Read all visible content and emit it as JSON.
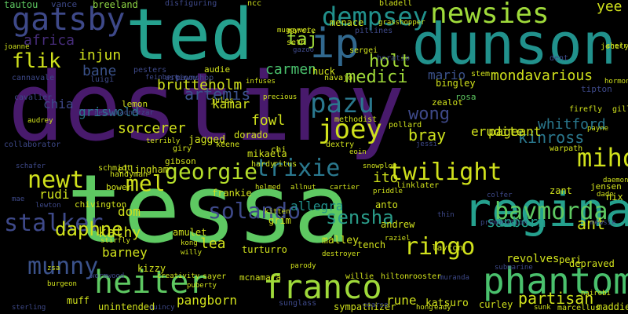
{
  "background": "#000000",
  "palette": {
    "dark_purple": "#3f1d5e",
    "indigo": "#3b528b",
    "blue": "#31688e",
    "teal": "#21918c",
    "sea": "#2a9c89",
    "green": "#5ec962",
    "lime": "#addc30",
    "yellow": "#fde725"
  },
  "words": [
    {
      "text": "destiny",
      "color": "#481a6c"
    },
    {
      "text": "tessa",
      "color": "#5ec962"
    },
    {
      "text": "dunson",
      "color": "#21918c"
    },
    {
      "text": "ted",
      "color": "#25a18e"
    },
    {
      "text": "regina",
      "color": "#25a18e"
    },
    {
      "text": "phantom",
      "color": "#4ac16d"
    },
    {
      "text": "newsies",
      "color": "#9fda3a"
    },
    {
      "text": "franco",
      "color": "#9fda3a"
    },
    {
      "text": "heiter",
      "color": "#5ec962"
    },
    {
      "text": "ip",
      "color": "#31688e"
    },
    {
      "text": "gatsby",
      "color": "#3e4989"
    },
    {
      "text": "pazu",
      "color": "#2a788e"
    },
    {
      "text": "dempsey",
      "color": "#21918c"
    },
    {
      "text": "joey",
      "color": "#d0e11c"
    },
    {
      "text": "munny",
      "color": "#3b528b"
    },
    {
      "text": "stalker",
      "color": "#3e4989"
    },
    {
      "text": "twilight",
      "color": "#d0e11c"
    },
    {
      "text": "solando",
      "color": "#3e4989"
    },
    {
      "text": "newt",
      "color": "#d0e11c"
    },
    {
      "text": "georgie",
      "color": "#b5de2b"
    },
    {
      "text": "trixie",
      "color": "#2a788e"
    },
    {
      "text": "bavmorda",
      "color": "#5ec962"
    },
    {
      "text": "ringo",
      "color": "#d0e11c"
    },
    {
      "text": "miho",
      "color": "#d0e11c"
    },
    {
      "text": "mel",
      "color": "#d0e11c"
    },
    {
      "text": "flik",
      "color": "#d0e11c"
    },
    {
      "text": "sensha",
      "color": "#2a9c89"
    },
    {
      "text": "daphne",
      "color": "#d0e11c"
    },
    {
      "text": "africa",
      "color": "#472d7b"
    },
    {
      "text": "tautou",
      "color": "#5ec962"
    },
    {
      "text": "vance",
      "color": "#3e4989"
    },
    {
      "text": "breeland",
      "color": "#8fd744"
    },
    {
      "text": "artemis",
      "color": "#3b528b"
    },
    {
      "text": "taj",
      "color": "#9fda3a"
    },
    {
      "text": "holt",
      "color": "#a2da37"
    },
    {
      "text": "injun",
      "color": "#d0e11c"
    },
    {
      "text": "bane",
      "color": "#3b528b"
    },
    {
      "text": "brutteholm",
      "color": "#d0e11c"
    },
    {
      "text": "carmen",
      "color": "#4ac16d"
    },
    {
      "text": "medici",
      "color": "#9fda3a"
    },
    {
      "text": "mondavarious",
      "color": "#d0e11c"
    },
    {
      "text": "wong",
      "color": "#3e4989"
    },
    {
      "text": "bray",
      "color": "#cde11d"
    },
    {
      "text": "kinross",
      "color": "#2a788e"
    },
    {
      "text": "whitford",
      "color": "#2a788e"
    },
    {
      "text": "erudite",
      "color": "#d0e11c"
    },
    {
      "text": "pageant",
      "color": "#d0e11c"
    },
    {
      "text": "sanborn",
      "color": "#25a18e"
    },
    {
      "text": "ant",
      "color": "#d0e11c"
    },
    {
      "text": "partisan",
      "color": "#d0e11c"
    },
    {
      "text": "mario",
      "color": "#3b528b"
    },
    {
      "text": "rosa",
      "color": "#5ec962"
    },
    {
      "text": "zealot",
      "color": "#d0e11c"
    },
    {
      "text": "methodist",
      "color": "#d0e11c"
    },
    {
      "text": "kamar",
      "color": "#d0e11c"
    },
    {
      "text": "fowl",
      "color": "#d0e11c"
    },
    {
      "text": "chia",
      "color": "#3e4989"
    },
    {
      "text": "griswold",
      "color": "#2a788e"
    },
    {
      "text": "sorcerer",
      "color": "#d0e11c"
    },
    {
      "text": "jagged",
      "color": "#d0e11c"
    },
    {
      "text": "dorado",
      "color": "#d0e11c"
    },
    {
      "text": "mikaela",
      "color": "#d0e11c"
    },
    {
      "text": "rudi",
      "color": "#d0e11c"
    },
    {
      "text": "ito",
      "color": "#d0e11c"
    },
    {
      "text": "dom",
      "color": "#d0e11c"
    },
    {
      "text": "kathy",
      "color": "#d0e11c"
    },
    {
      "text": "lea",
      "color": "#d0e11c"
    },
    {
      "text": "barney",
      "color": "#d0e11c"
    },
    {
      "text": "allegra",
      "color": "#21918c"
    },
    {
      "text": "anto",
      "color": "#d0e11c"
    },
    {
      "text": "andrew",
      "color": "#d0e11c"
    },
    {
      "text": "malley",
      "color": "#d0e11c"
    },
    {
      "text": "turturro",
      "color": "#d0e11c"
    },
    {
      "text": "kizzy",
      "color": "#d0e11c"
    },
    {
      "text": "mcnamara",
      "color": "#d0e11c"
    },
    {
      "text": "muff",
      "color": "#d0e11c"
    },
    {
      "text": "unintended",
      "color": "#d0e11c"
    },
    {
      "text": "pangborn",
      "color": "#d0e11c"
    },
    {
      "text": "rune",
      "color": "#d0e11c"
    },
    {
      "text": "katsuro",
      "color": "#d0e11c"
    },
    {
      "text": "curley",
      "color": "#d0e11c"
    },
    {
      "text": "revolves",
      "color": "#d0e11c"
    },
    {
      "text": "depraved",
      "color": "#d0e11c"
    },
    {
      "text": "peri",
      "color": "#d0e11c"
    },
    {
      "text": "yee",
      "color": "#d0e11c"
    },
    {
      "text": "lemon",
      "color": "#d0e11c"
    },
    {
      "text": "sunglass",
      "color": "#3e4989"
    },
    {
      "text": "sympathizer",
      "color": "#d0e11c"
    },
    {
      "text": "maddie",
      "color": "#d0e11c"
    },
    {
      "text": "ellingham",
      "color": "#d0e11c"
    },
    {
      "text": "schmidt",
      "color": "#d0e11c"
    },
    {
      "text": "gibson",
      "color": "#d0e11c"
    },
    {
      "text": "frankie",
      "color": "#d0e11c"
    },
    {
      "text": "bower",
      "color": "#d0e11c"
    },
    {
      "text": "amulet",
      "color": "#d0e11c"
    },
    {
      "text": "grim",
      "color": "#d0e11c"
    },
    {
      "text": "tench",
      "color": "#d0e11c"
    },
    {
      "text": "layton",
      "color": "#d0e11c"
    },
    {
      "text": "jensen",
      "color": "#d0e11c"
    },
    {
      "text": "zant",
      "color": "#d0e11c"
    },
    {
      "text": "nix",
      "color": "#d0e11c"
    },
    {
      "text": "stem",
      "color": "#d0e11c"
    },
    {
      "text": "huck",
      "color": "#d0e11c"
    },
    {
      "text": "audie",
      "color": "#d0e11c"
    },
    {
      "text": "navajo",
      "color": "#d0e11c"
    },
    {
      "text": "bingley",
      "color": "#d0e11c"
    },
    {
      "text": "dextry",
      "color": "#d0e11c"
    },
    {
      "text": "sergei",
      "color": "#d0e11c"
    },
    {
      "text": "seth",
      "color": "#d0e11c"
    },
    {
      "text": "menace",
      "color": "#d0e11c"
    },
    {
      "text": "luigi",
      "color": "#3e4989"
    },
    {
      "text": "cannavale",
      "color": "#3e4989"
    },
    {
      "text": "pesters",
      "color": "#3e4989"
    },
    {
      "text": "ustinov",
      "color": "#3e4989"
    },
    {
      "text": "pawnshop",
      "color": "#3e4989"
    },
    {
      "text": "feinberg",
      "color": "#3e4989"
    },
    {
      "text": "jules",
      "color": "#d0e11c"
    },
    {
      "text": "infuses",
      "color": "#d0e11c"
    },
    {
      "text": "tipton",
      "color": "#3e4989"
    },
    {
      "text": "firefly",
      "color": "#d0e11c"
    },
    {
      "text": "gilliam",
      "color": "#d0e11c"
    },
    {
      "text": "dent",
      "color": "#3e4989"
    },
    {
      "text": "jocelyn",
      "color": "#d0e11c"
    },
    {
      "text": "joanne",
      "color": "#d0e11c"
    },
    {
      "text": "ncc",
      "color": "#d0e11c"
    },
    {
      "text": "disfiguring",
      "color": "#3e4989"
    },
    {
      "text": "pitlines",
      "color": "#3e4989"
    },
    {
      "text": "grasshopper",
      "color": "#d0e11c"
    },
    {
      "text": "bladell",
      "color": "#d0e11c"
    },
    {
      "text": "horatio",
      "color": "#3e4989"
    },
    {
      "text": "gazoo",
      "color": "#3e4989"
    },
    {
      "text": "marcie",
      "color": "#d0e11c"
    },
    {
      "text": "muggyver",
      "color": "#d0e11c"
    },
    {
      "text": "precious",
      "color": "#d0e11c"
    },
    {
      "text": "keene",
      "color": "#d0e11c"
    },
    {
      "text": "giry",
      "color": "#d0e11c"
    },
    {
      "text": "ritus",
      "color": "#d0e11c"
    },
    {
      "text": "chi",
      "color": "#d0e11c"
    },
    {
      "text": "hardy",
      "color": "#d0e11c"
    },
    {
      "text": "pollard",
      "color": "#d0e11c"
    },
    {
      "text": "eoin",
      "color": "#d0e11c"
    },
    {
      "text": "snowplow",
      "color": "#d0e11c"
    },
    {
      "text": "jessi",
      "color": "#3e4989"
    },
    {
      "text": "collaborator",
      "color": "#3e4989"
    },
    {
      "text": "cavalier",
      "color": "#3e4989"
    },
    {
      "text": "audrey",
      "color": "#d0e11c"
    },
    {
      "text": "nebuchadnezzar",
      "color": "#3e4989"
    },
    {
      "text": "terribly",
      "color": "#d0e11c"
    },
    {
      "text": "schafer",
      "color": "#3e4989"
    },
    {
      "text": "mae",
      "color": "#3e4989"
    },
    {
      "text": "chivington",
      "color": "#d0e11c"
    },
    {
      "text": "handyman",
      "color": "#d0e11c"
    },
    {
      "text": "helmed",
      "color": "#d0e11c"
    },
    {
      "text": "allnut",
      "color": "#d0e11c"
    },
    {
      "text": "cartier",
      "color": "#d0e11c"
    },
    {
      "text": "priddle",
      "color": "#d0e11c"
    },
    {
      "text": "linklater",
      "color": "#d0e11c"
    },
    {
      "text": "kitten",
      "color": "#d0e11c"
    },
    {
      "text": "lewton",
      "color": "#3e4989"
    },
    {
      "text": "thin",
      "color": "#3e4989"
    },
    {
      "text": "premonition",
      "color": "#3e4989"
    },
    {
      "text": "colfer",
      "color": "#3e4989"
    },
    {
      "text": "payne",
      "color": "#d0e11c"
    },
    {
      "text": "warpath",
      "color": "#d0e11c"
    },
    {
      "text": "dade",
      "color": "#d0e11c"
    },
    {
      "text": "daemon",
      "color": "#d0e11c"
    },
    {
      "text": "mewsie",
      "color": "#3e4989"
    },
    {
      "text": "stirfly",
      "color": "#d0e11c"
    },
    {
      "text": "kong",
      "color": "#d0e11c"
    },
    {
      "text": "willy",
      "color": "#d0e11c"
    },
    {
      "text": "destroyer",
      "color": "#d0e11c"
    },
    {
      "text": "raziel",
      "color": "#d0e11c"
    },
    {
      "text": "wormwood",
      "color": "#3e4989"
    },
    {
      "text": "creativity",
      "color": "#d0e11c"
    },
    {
      "text": "sayer",
      "color": "#d0e11c"
    },
    {
      "text": "puberty",
      "color": "#d0e11c"
    },
    {
      "text": "parody",
      "color": "#d0e11c"
    },
    {
      "text": "willie",
      "color": "#d0e11c"
    },
    {
      "text": "hilton",
      "color": "#d0e11c"
    },
    {
      "text": "rooster",
      "color": "#d0e11c"
    },
    {
      "text": "muranda",
      "color": "#3e4989"
    },
    {
      "text": "submarine",
      "color": "#3e4989"
    },
    {
      "text": "sterling",
      "color": "#3e4989"
    },
    {
      "text": "quincy",
      "color": "#3e4989"
    },
    {
      "text": "coarse",
      "color": "#3e4989"
    },
    {
      "text": "hong",
      "color": "#d0e11c"
    },
    {
      "text": "eady",
      "color": "#d0e11c"
    },
    {
      "text": "sunk",
      "color": "#d0e11c"
    },
    {
      "text": "marcellus",
      "color": "#d0e11c"
    },
    {
      "text": "burgeon",
      "color": "#d0e11c"
    },
    {
      "text": "zsa",
      "color": "#d0e11c"
    },
    {
      "text": "hormone",
      "color": "#d0e11c"
    },
    {
      "text": "cherry",
      "color": "#d0e11c"
    },
    {
      "text": "nairobi",
      "color": "#d0e11c"
    }
  ]
}
